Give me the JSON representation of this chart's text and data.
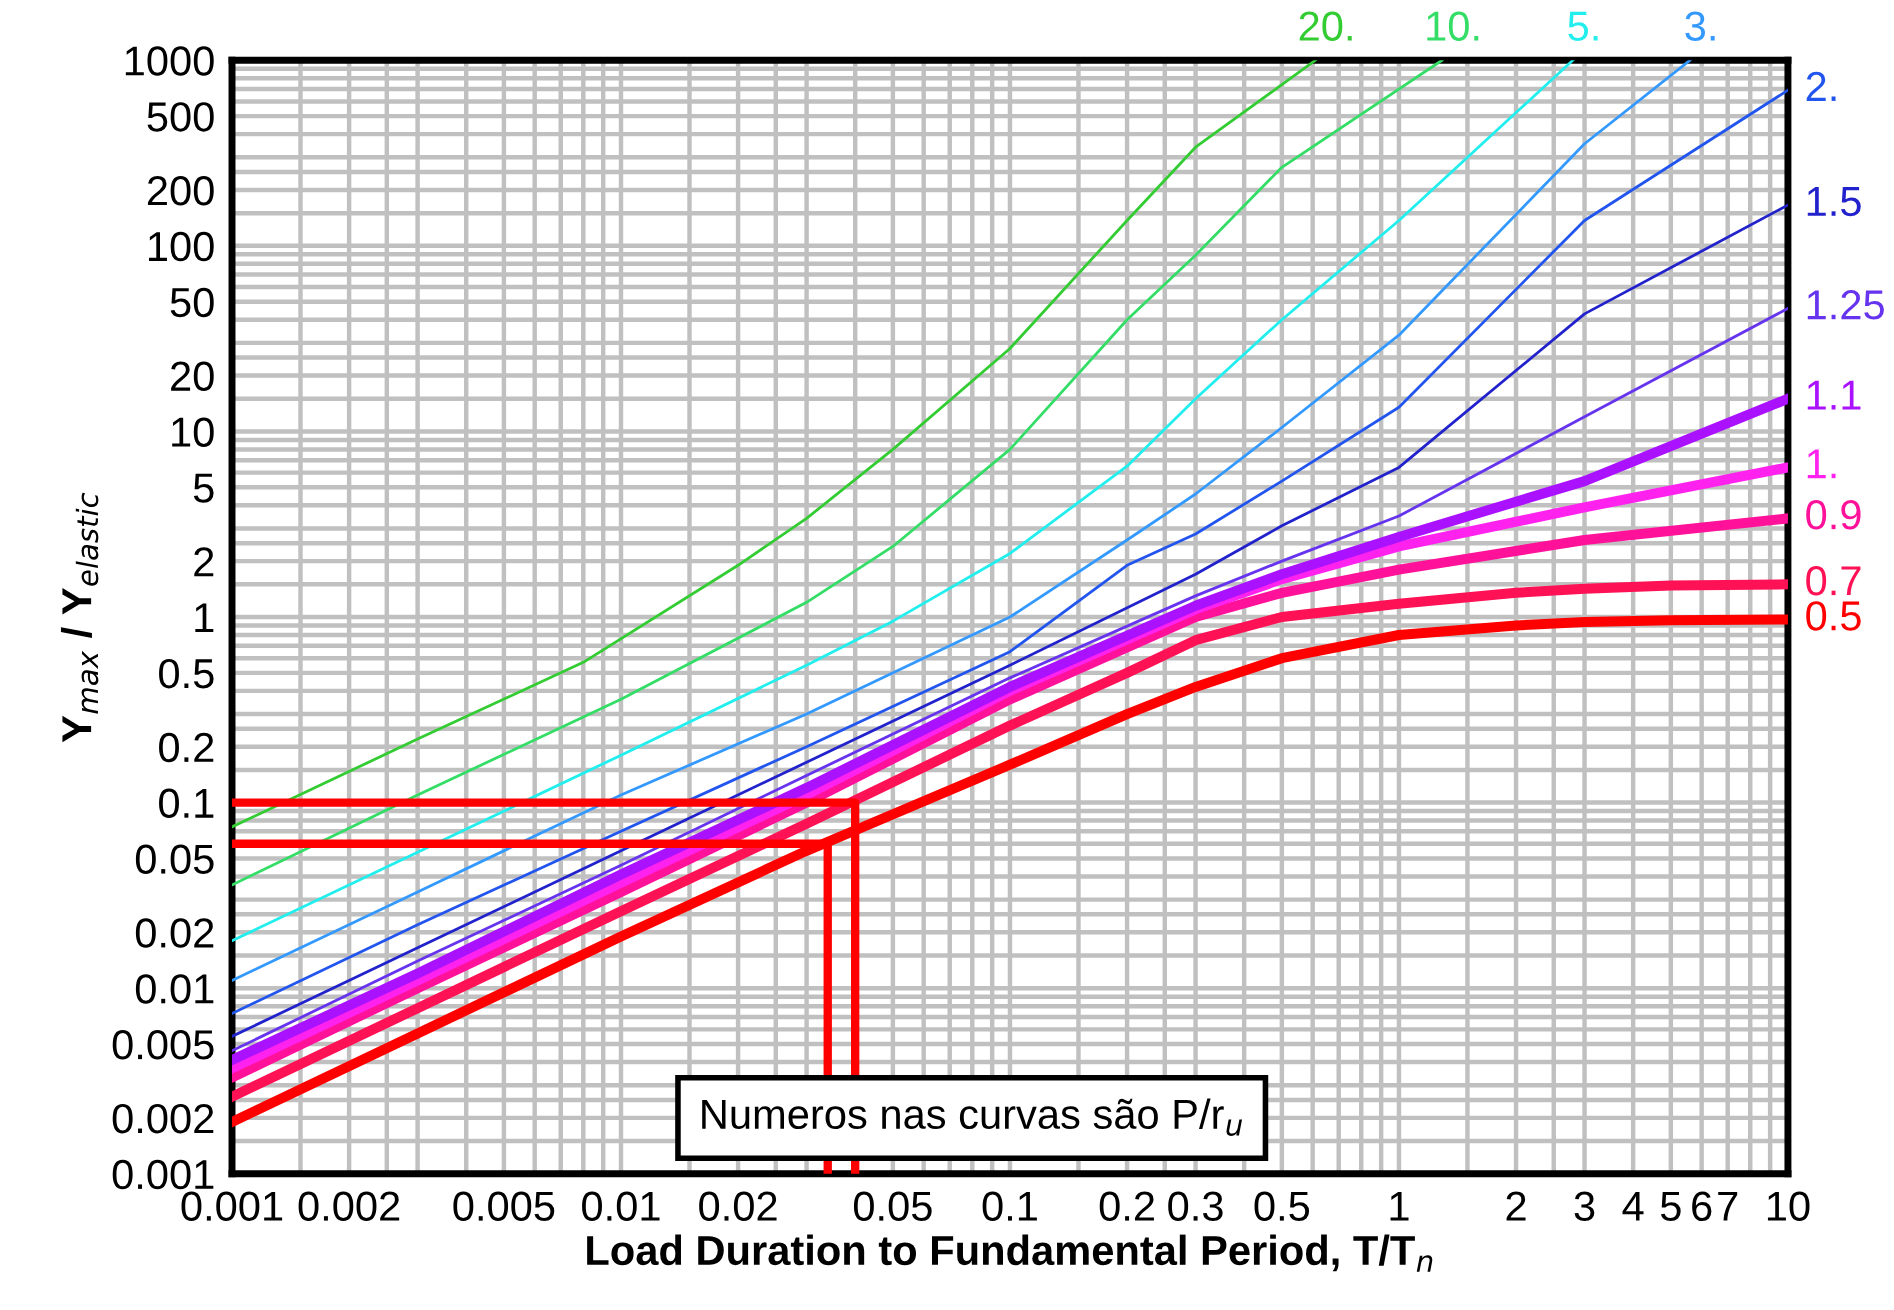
{
  "chart_data": {
    "type": "line",
    "xlabel": "Load Duration to Fundamental Period, T/T$_{n}$",
    "ylabel": "Y$_{max}$ / Y$_{elastic}$",
    "log": "xy",
    "grid": true,
    "line_style": "solid",
    "marker": "none",
    "xlim": [
      0.001,
      10
    ],
    "ylim": [
      0.001,
      1000
    ],
    "xticks": [
      0.001,
      0.002,
      0.005,
      0.01,
      0.02,
      0.05,
      0.1,
      0.2,
      0.3,
      0.5,
      1,
      2,
      3,
      4,
      5,
      6,
      7,
      10
    ],
    "yticks": [
      0.001,
      0.002,
      0.005,
      0.01,
      0.02,
      0.05,
      0.1,
      0.2,
      0.5,
      1,
      2,
      5,
      10,
      20,
      50,
      100,
      200,
      500,
      1000
    ],
    "annotations": [
      "Numeros nas curvas são P/r$_{u}$"
    ],
    "series": [
      {
        "name": "0.5",
        "color": "#ff0000",
        "x": [
          0.001,
          0.003,
          0.01,
          0.03,
          0.1,
          0.2,
          0.3,
          0.5,
          1,
          2,
          3,
          5,
          10
        ],
        "values": [
          0.0019,
          0.0057,
          0.019,
          0.055,
          0.16,
          0.3,
          0.42,
          0.6,
          0.8,
          0.9,
          0.94,
          0.96,
          0.97
        ]
      },
      {
        "name": "0.7",
        "color": "#ff1155",
        "x": [
          0.001,
          0.003,
          0.01,
          0.03,
          0.1,
          0.2,
          0.3,
          0.5,
          1,
          2,
          3,
          5,
          10
        ],
        "values": [
          0.0026,
          0.0078,
          0.026,
          0.077,
          0.26,
          0.5,
          0.75,
          1.0,
          1.18,
          1.35,
          1.42,
          1.48,
          1.5
        ]
      },
      {
        "name": "0.9",
        "color": "#ff1199",
        "x": [
          0.001,
          0.003,
          0.01,
          0.03,
          0.1,
          0.3,
          0.5,
          1,
          3,
          10
        ],
        "values": [
          0.0033,
          0.01,
          0.033,
          0.1,
          0.36,
          1.0,
          1.35,
          1.8,
          2.6,
          3.4
        ]
      },
      {
        "name": "1.",
        "color": "#ff22ee",
        "x": [
          0.001,
          0.003,
          0.01,
          0.03,
          0.1,
          0.3,
          0.5,
          1,
          3,
          10
        ],
        "values": [
          0.0037,
          0.011,
          0.037,
          0.11,
          0.4,
          1.1,
          1.6,
          2.4,
          3.9,
          6.4
        ]
      },
      {
        "name": "1.1",
        "color": "#aa11ff",
        "x": [
          0.001,
          0.003,
          0.01,
          0.03,
          0.1,
          0.3,
          0.5,
          1,
          3,
          10
        ],
        "values": [
          0.0041,
          0.012,
          0.041,
          0.12,
          0.42,
          1.15,
          1.7,
          2.7,
          5.4,
          15
        ]
      },
      {
        "name": "1.25",
        "color": "#6633ee",
        "x": [
          0.001,
          0.003,
          0.01,
          0.03,
          0.1,
          0.3,
          0.5,
          1,
          3,
          10
        ],
        "values": [
          0.0046,
          0.014,
          0.046,
          0.14,
          0.47,
          1.3,
          2.0,
          3.5,
          12,
          46
        ]
      },
      {
        "name": "1.5",
        "color": "#2222cc",
        "x": [
          0.001,
          0.003,
          0.01,
          0.03,
          0.1,
          0.3,
          0.5,
          1,
          3,
          10
        ],
        "values": [
          0.0055,
          0.0165,
          0.055,
          0.165,
          0.55,
          1.7,
          3.1,
          6.4,
          43,
          166
        ]
      },
      {
        "name": "2.",
        "color": "#2255ee",
        "x": [
          0.001,
          0.003,
          0.01,
          0.03,
          0.1,
          0.2,
          0.3,
          0.5,
          1,
          3,
          10
        ],
        "values": [
          0.0073,
          0.022,
          0.07,
          0.2,
          0.65,
          1.9,
          2.8,
          5.4,
          13.5,
          137,
          690
        ]
      },
      {
        "name": "3.",
        "color": "#3399ff",
        "x": [
          0.001,
          0.003,
          0.01,
          0.03,
          0.1,
          0.2,
          0.3,
          0.5,
          1,
          3,
          5.6
        ],
        "values": [
          0.011,
          0.033,
          0.11,
          0.3,
          1.0,
          2.6,
          4.6,
          10.5,
          33,
          355,
          1000
        ]
      },
      {
        "name": "5.",
        "color": "#22eeee",
        "x": [
          0.001,
          0.003,
          0.01,
          0.03,
          0.05,
          0.1,
          0.2,
          0.3,
          0.5,
          1,
          2.8
        ],
        "values": [
          0.018,
          0.054,
          0.18,
          0.55,
          0.95,
          2.2,
          6.5,
          15,
          40,
          137,
          1000
        ]
      },
      {
        "name": "10.",
        "color": "#33dd66",
        "x": [
          0.001,
          0.003,
          0.01,
          0.03,
          0.05,
          0.1,
          0.2,
          0.3,
          0.5,
          1.29
        ],
        "values": [
          0.036,
          0.11,
          0.36,
          1.2,
          2.4,
          8,
          40,
          89,
          265,
          1000
        ]
      },
      {
        "name": "20.",
        "color": "#33cc33",
        "x": [
          0.001,
          0.003,
          0.008,
          0.02,
          0.03,
          0.05,
          0.1,
          0.2,
          0.3,
          0.61
        ],
        "values": [
          0.074,
          0.22,
          0.57,
          1.9,
          3.4,
          8,
          28,
          137,
          340,
          1000
        ]
      },
      {
        "color": "#ff0000",
        "x": [
          0.001,
          0.04,
          0.04
        ],
        "values": [
          0.1,
          0.1,
          0.001
        ]
      },
      {
        "color": "#ff0000",
        "x": [
          0.001,
          0.034,
          0.034
        ],
        "values": [
          0.06,
          0.06,
          0.001
        ]
      }
    ]
  }
}
